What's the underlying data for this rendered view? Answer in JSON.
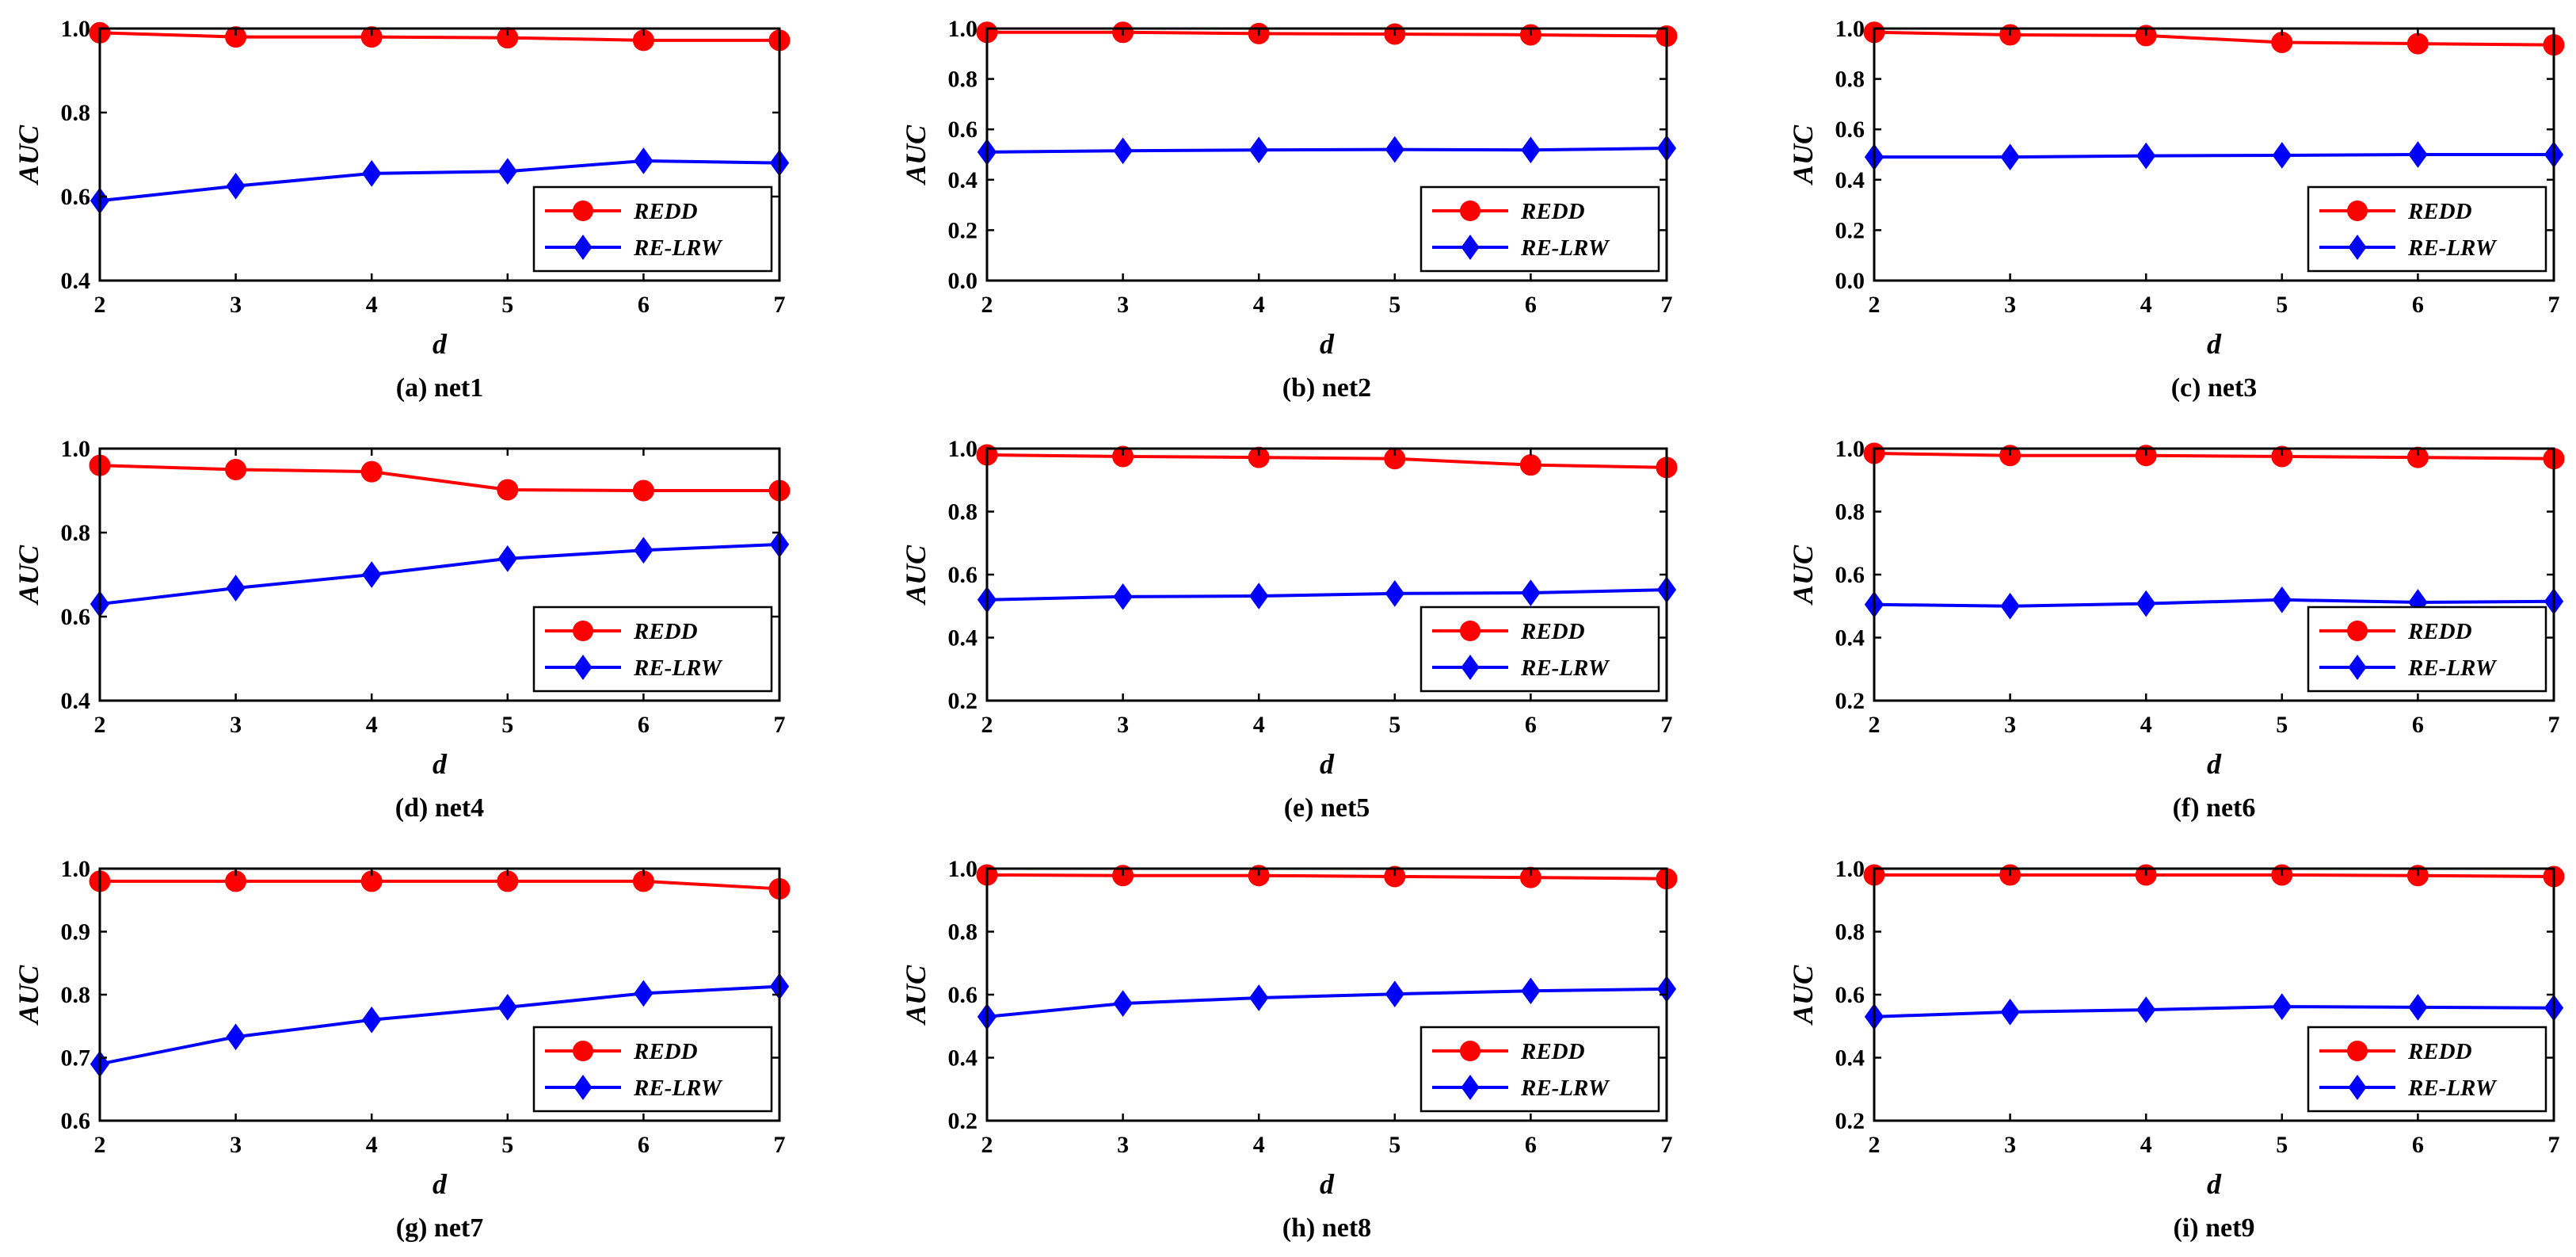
{
  "colors": {
    "redd": "#ff0000",
    "relrw": "#0000ff",
    "axis": "#000000"
  },
  "chart_data": [
    {
      "type": "line",
      "caption": "(a) net1",
      "xlabel": "d",
      "ylabel": "AUC",
      "x": [
        2,
        3,
        4,
        5,
        6,
        7
      ],
      "xticks": [
        "2",
        "3",
        "4",
        "5",
        "6",
        "7"
      ],
      "ylim": [
        0.4,
        1.0
      ],
      "yticks": [
        "0.4",
        "0.6",
        "0.8",
        "1.0"
      ],
      "legend": [
        "REDD",
        "RE-LRW"
      ],
      "legend_position": "bottom-right",
      "series": [
        {
          "name": "REDD",
          "marker": "circle",
          "values": [
            0.99,
            0.98,
            0.98,
            0.978,
            0.972,
            0.972
          ]
        },
        {
          "name": "RE-LRW",
          "marker": "diamond",
          "values": [
            0.59,
            0.625,
            0.655,
            0.66,
            0.685,
            0.68
          ]
        }
      ]
    },
    {
      "type": "line",
      "caption": "(b) net2",
      "xlabel": "d",
      "ylabel": "AUC",
      "x": [
        2,
        3,
        4,
        5,
        6,
        7
      ],
      "xticks": [
        "2",
        "3",
        "4",
        "5",
        "6",
        "7"
      ],
      "ylim": [
        0.0,
        1.0
      ],
      "yticks": [
        "0.0",
        "0.2",
        "0.4",
        "0.6",
        "0.8",
        "1.0"
      ],
      "legend": [
        "REDD",
        "RE-LRW"
      ],
      "legend_position": "bottom-right",
      "series": [
        {
          "name": "REDD",
          "marker": "circle",
          "values": [
            0.985,
            0.985,
            0.98,
            0.978,
            0.975,
            0.97
          ]
        },
        {
          "name": "RE-LRW",
          "marker": "diamond",
          "values": [
            0.51,
            0.515,
            0.518,
            0.52,
            0.518,
            0.525
          ]
        }
      ]
    },
    {
      "type": "line",
      "caption": "(c) net3",
      "xlabel": "d",
      "ylabel": "AUC",
      "x": [
        2,
        3,
        4,
        5,
        6,
        7
      ],
      "xticks": [
        "2",
        "3",
        "4",
        "5",
        "6",
        "7"
      ],
      "ylim": [
        0.0,
        1.0
      ],
      "yticks": [
        "0.0",
        "0.2",
        "0.4",
        "0.6",
        "0.8",
        "1.0"
      ],
      "legend": [
        "REDD",
        "RE-LRW"
      ],
      "legend_position": "bottom-right",
      "series": [
        {
          "name": "REDD",
          "marker": "circle",
          "values": [
            0.985,
            0.975,
            0.972,
            0.945,
            0.94,
            0.935
          ]
        },
        {
          "name": "RE-LRW",
          "marker": "diamond",
          "values": [
            0.49,
            0.49,
            0.495,
            0.497,
            0.5,
            0.5
          ]
        }
      ]
    },
    {
      "type": "line",
      "caption": "(d) net4",
      "xlabel": "d",
      "ylabel": "AUC",
      "x": [
        2,
        3,
        4,
        5,
        6,
        7
      ],
      "xticks": [
        "2",
        "3",
        "4",
        "5",
        "6",
        "7"
      ],
      "ylim": [
        0.4,
        1.0
      ],
      "yticks": [
        "0.4",
        "0.6",
        "0.8",
        "1.0"
      ],
      "legend": [
        "REDD",
        "RE-LRW"
      ],
      "legend_position": "bottom-right",
      "series": [
        {
          "name": "REDD",
          "marker": "circle",
          "values": [
            0.96,
            0.95,
            0.945,
            0.902,
            0.9,
            0.9
          ]
        },
        {
          "name": "RE-LRW",
          "marker": "diamond",
          "values": [
            0.63,
            0.668,
            0.7,
            0.738,
            0.758,
            0.772
          ]
        }
      ]
    },
    {
      "type": "line",
      "caption": "(e) net5",
      "xlabel": "d",
      "ylabel": "AUC",
      "x": [
        2,
        3,
        4,
        5,
        6,
        7
      ],
      "xticks": [
        "2",
        "3",
        "4",
        "5",
        "6",
        "7"
      ],
      "ylim": [
        0.2,
        1.0
      ],
      "yticks": [
        "0.2",
        "0.4",
        "0.6",
        "0.8",
        "1.0"
      ],
      "legend": [
        "REDD",
        "RE-LRW"
      ],
      "legend_position": "bottom-right",
      "series": [
        {
          "name": "REDD",
          "marker": "circle",
          "values": [
            0.98,
            0.975,
            0.972,
            0.968,
            0.948,
            0.94
          ]
        },
        {
          "name": "RE-LRW",
          "marker": "diamond",
          "values": [
            0.52,
            0.53,
            0.532,
            0.54,
            0.542,
            0.552
          ]
        }
      ]
    },
    {
      "type": "line",
      "caption": "(f) net6",
      "xlabel": "d",
      "ylabel": "AUC",
      "x": [
        2,
        3,
        4,
        5,
        6,
        7
      ],
      "xticks": [
        "2",
        "3",
        "4",
        "5",
        "6",
        "7"
      ],
      "ylim": [
        0.2,
        1.0
      ],
      "yticks": [
        "0.2",
        "0.4",
        "0.6",
        "0.8",
        "1.0"
      ],
      "legend": [
        "REDD",
        "RE-LRW"
      ],
      "legend_position": "bottom-right",
      "series": [
        {
          "name": "REDD",
          "marker": "circle",
          "values": [
            0.985,
            0.978,
            0.978,
            0.975,
            0.972,
            0.968
          ]
        },
        {
          "name": "RE-LRW",
          "marker": "diamond",
          "values": [
            0.505,
            0.5,
            0.508,
            0.52,
            0.512,
            0.515
          ]
        }
      ]
    },
    {
      "type": "line",
      "caption": "(g) net7",
      "xlabel": "d",
      "ylabel": "AUC",
      "x": [
        2,
        3,
        4,
        5,
        6,
        7
      ],
      "xticks": [
        "2",
        "3",
        "4",
        "5",
        "6",
        "7"
      ],
      "ylim": [
        0.6,
        1.0
      ],
      "yticks": [
        "0.6",
        "0.7",
        "0.8",
        "0.9",
        "1.0"
      ],
      "legend": [
        "REDD",
        "RE-LRW"
      ],
      "legend_position": "bottom-right",
      "series": [
        {
          "name": "REDD",
          "marker": "circle",
          "values": [
            0.98,
            0.98,
            0.98,
            0.98,
            0.98,
            0.968
          ]
        },
        {
          "name": "RE-LRW",
          "marker": "diamond",
          "values": [
            0.69,
            0.733,
            0.76,
            0.78,
            0.802,
            0.813
          ]
        }
      ]
    },
    {
      "type": "line",
      "caption": "(h) net8",
      "xlabel": "d",
      "ylabel": "AUC",
      "x": [
        2,
        3,
        4,
        5,
        6,
        7
      ],
      "xticks": [
        "2",
        "3",
        "4",
        "5",
        "6",
        "7"
      ],
      "ylim": [
        0.2,
        1.0
      ],
      "yticks": [
        "0.2",
        "0.4",
        "0.6",
        "0.8",
        "1.0"
      ],
      "legend": [
        "REDD",
        "RE-LRW"
      ],
      "legend_position": "bottom-right",
      "series": [
        {
          "name": "REDD",
          "marker": "circle",
          "values": [
            0.98,
            0.978,
            0.978,
            0.975,
            0.972,
            0.968
          ]
        },
        {
          "name": "RE-LRW",
          "marker": "diamond",
          "values": [
            0.53,
            0.572,
            0.59,
            0.602,
            0.612,
            0.618
          ]
        }
      ]
    },
    {
      "type": "line",
      "caption": "(i) net9",
      "xlabel": "d",
      "ylabel": "AUC",
      "x": [
        2,
        3,
        4,
        5,
        6,
        7
      ],
      "xticks": [
        "2",
        "3",
        "4",
        "5",
        "6",
        "7"
      ],
      "ylim": [
        0.2,
        1.0
      ],
      "yticks": [
        "0.2",
        "0.4",
        "0.6",
        "0.8",
        "1.0"
      ],
      "legend": [
        "REDD",
        "RE-LRW"
      ],
      "legend_position": "bottom-right",
      "series": [
        {
          "name": "REDD",
          "marker": "circle",
          "values": [
            0.98,
            0.98,
            0.98,
            0.98,
            0.978,
            0.975
          ]
        },
        {
          "name": "RE-LRW",
          "marker": "diamond",
          "values": [
            0.53,
            0.545,
            0.552,
            0.562,
            0.56,
            0.558
          ]
        }
      ]
    }
  ]
}
